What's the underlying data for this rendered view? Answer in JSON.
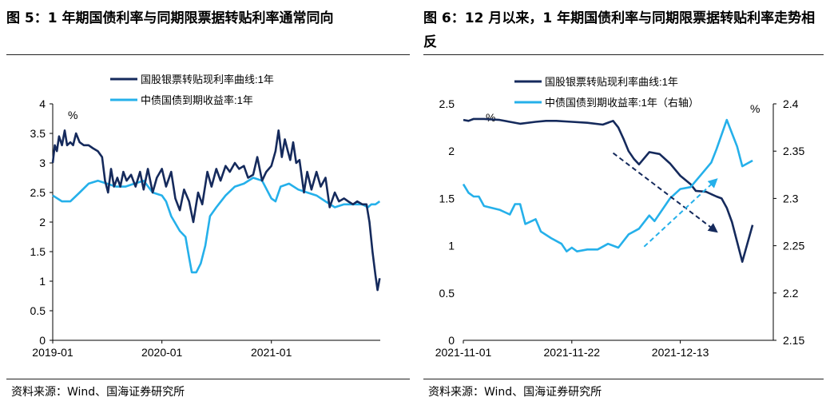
{
  "colors": {
    "navy": "#152a5c",
    "cyan": "#25b0ea"
  },
  "left": {
    "title": "图 5：1 年期国债利率与同期限票据转贴利率通常同向",
    "source": "资料来源：Wind、国海证券研究所",
    "chart_data": {
      "type": "line",
      "unit_label": "%",
      "x_tick_labels": [
        "2019-01",
        "2020-01",
        "2021-01"
      ],
      "x_tick_dates": [
        "2019-01-01",
        "2020-01-01",
        "2021-01-01"
      ],
      "x_range": [
        "2019-01-01",
        "2021-12-31"
      ],
      "y_ticks": [
        "0",
        "0.5",
        "1",
        "1.5",
        "2",
        "2.5",
        "3",
        "3.5",
        "4"
      ],
      "ylim": [
        0,
        4
      ],
      "legend_position": "top-center",
      "series": [
        {
          "name": "国股银票转贴现利率曲线:1年",
          "color": "#152a5c",
          "points": [
            [
              "2019-01-01",
              3.0
            ],
            [
              "2019-01-08",
              3.3
            ],
            [
              "2019-01-15",
              3.2
            ],
            [
              "2019-01-22",
              3.45
            ],
            [
              "2019-02-01",
              3.3
            ],
            [
              "2019-02-10",
              3.55
            ],
            [
              "2019-02-18",
              3.3
            ],
            [
              "2019-03-01",
              3.35
            ],
            [
              "2019-03-10",
              3.3
            ],
            [
              "2019-03-20",
              3.5
            ],
            [
              "2019-04-01",
              3.35
            ],
            [
              "2019-04-15",
              3.3
            ],
            [
              "2019-05-01",
              3.3
            ],
            [
              "2019-05-15",
              3.25
            ],
            [
              "2019-06-01",
              3.2
            ],
            [
              "2019-06-15",
              3.1
            ],
            [
              "2019-06-25",
              2.7
            ],
            [
              "2019-07-05",
              2.5
            ],
            [
              "2019-07-15",
              2.9
            ],
            [
              "2019-07-25",
              2.6
            ],
            [
              "2019-08-05",
              2.75
            ],
            [
              "2019-08-15",
              2.6
            ],
            [
              "2019-08-25",
              2.85
            ],
            [
              "2019-09-05",
              2.7
            ],
            [
              "2019-09-20",
              2.8
            ],
            [
              "2019-10-05",
              2.6
            ],
            [
              "2019-10-20",
              2.85
            ],
            [
              "2019-11-01",
              2.55
            ],
            [
              "2019-11-15",
              2.9
            ],
            [
              "2019-12-01",
              2.5
            ],
            [
              "2019-12-15",
              2.75
            ],
            [
              "2020-01-01",
              2.9
            ],
            [
              "2020-01-15",
              2.6
            ],
            [
              "2020-02-01",
              2.85
            ],
            [
              "2020-02-15",
              2.4
            ],
            [
              "2020-03-01",
              2.2
            ],
            [
              "2020-03-15",
              2.55
            ],
            [
              "2020-04-01",
              2.35
            ],
            [
              "2020-04-15",
              2.0
            ],
            [
              "2020-05-01",
              2.5
            ],
            [
              "2020-05-15",
              2.3
            ],
            [
              "2020-06-01",
              2.85
            ],
            [
              "2020-06-15",
              2.6
            ],
            [
              "2020-07-01",
              2.9
            ],
            [
              "2020-07-15",
              2.7
            ],
            [
              "2020-08-01",
              2.95
            ],
            [
              "2020-08-15",
              2.85
            ],
            [
              "2020-09-01",
              3.0
            ],
            [
              "2020-09-15",
              2.9
            ],
            [
              "2020-10-01",
              2.95
            ],
            [
              "2020-10-15",
              2.75
            ],
            [
              "2020-11-01",
              2.8
            ],
            [
              "2020-11-15",
              3.1
            ],
            [
              "2020-12-01",
              2.7
            ],
            [
              "2020-12-15",
              2.85
            ],
            [
              "2021-01-01",
              2.95
            ],
            [
              "2021-01-15",
              3.2
            ],
            [
              "2021-01-25",
              3.55
            ],
            [
              "2021-02-05",
              3.1
            ],
            [
              "2021-02-15",
              3.4
            ],
            [
              "2021-02-25",
              3.2
            ],
            [
              "2021-03-05",
              3.05
            ],
            [
              "2021-03-15",
              3.35
            ],
            [
              "2021-03-25",
              3.0
            ],
            [
              "2021-04-05",
              3.05
            ],
            [
              "2021-04-20",
              2.5
            ],
            [
              "2021-05-01",
              2.85
            ],
            [
              "2021-05-15",
              2.55
            ],
            [
              "2021-06-01",
              2.85
            ],
            [
              "2021-06-15",
              2.6
            ],
            [
              "2021-07-01",
              2.75
            ],
            [
              "2021-07-15",
              2.25
            ],
            [
              "2021-08-01",
              2.5
            ],
            [
              "2021-08-15",
              2.35
            ],
            [
              "2021-09-01",
              2.4
            ],
            [
              "2021-09-15",
              2.35
            ],
            [
              "2021-10-01",
              2.3
            ],
            [
              "2021-10-15",
              2.35
            ],
            [
              "2021-11-01",
              2.3
            ],
            [
              "2021-11-15",
              2.3
            ],
            [
              "2021-11-25",
              2.0
            ],
            [
              "2021-12-05",
              1.5
            ],
            [
              "2021-12-15",
              1.1
            ],
            [
              "2021-12-22",
              0.85
            ],
            [
              "2021-12-29",
              1.05
            ]
          ]
        },
        {
          "name": "中债国债到期收益率:1年",
          "color": "#25b0ea",
          "points": [
            [
              "2019-01-01",
              2.45
            ],
            [
              "2019-02-01",
              2.35
            ],
            [
              "2019-03-01",
              2.35
            ],
            [
              "2019-04-01",
              2.5
            ],
            [
              "2019-05-01",
              2.65
            ],
            [
              "2019-06-01",
              2.7
            ],
            [
              "2019-07-01",
              2.65
            ],
            [
              "2019-08-01",
              2.6
            ],
            [
              "2019-09-01",
              2.6
            ],
            [
              "2019-10-01",
              2.65
            ],
            [
              "2019-11-01",
              2.7
            ],
            [
              "2019-12-01",
              2.5
            ],
            [
              "2020-01-01",
              2.45
            ],
            [
              "2020-01-15",
              2.35
            ],
            [
              "2020-02-01",
              2.1
            ],
            [
              "2020-03-01",
              1.85
            ],
            [
              "2020-03-20",
              1.75
            ],
            [
              "2020-04-01",
              1.4
            ],
            [
              "2020-04-10",
              1.15
            ],
            [
              "2020-04-25",
              1.15
            ],
            [
              "2020-05-10",
              1.3
            ],
            [
              "2020-05-25",
              1.6
            ],
            [
              "2020-06-10",
              2.1
            ],
            [
              "2020-07-01",
              2.25
            ],
            [
              "2020-08-01",
              2.45
            ],
            [
              "2020-09-01",
              2.6
            ],
            [
              "2020-10-01",
              2.65
            ],
            [
              "2020-11-01",
              2.75
            ],
            [
              "2020-12-01",
              2.7
            ],
            [
              "2021-01-01",
              2.4
            ],
            [
              "2021-01-15",
              2.35
            ],
            [
              "2021-02-01",
              2.6
            ],
            [
              "2021-03-01",
              2.65
            ],
            [
              "2021-04-01",
              2.55
            ],
            [
              "2021-05-01",
              2.5
            ],
            [
              "2021-06-01",
              2.45
            ],
            [
              "2021-07-01",
              2.35
            ],
            [
              "2021-08-01",
              2.25
            ],
            [
              "2021-09-01",
              2.3
            ],
            [
              "2021-10-01",
              2.3
            ],
            [
              "2021-11-01",
              2.3
            ],
            [
              "2021-11-20",
              2.25
            ],
            [
              "2021-12-01",
              2.3
            ],
            [
              "2021-12-15",
              2.3
            ],
            [
              "2021-12-29",
              2.35
            ]
          ]
        }
      ]
    }
  },
  "right": {
    "title": "图 6：12 月以来，1 年期国债利率与同期限票据转贴利率走势相反",
    "source": "资料来源：Wind、国海证券研究所",
    "chart_data": {
      "type": "line",
      "unit_label_left": "%",
      "unit_label_right": "%",
      "x_tick_labels": [
        "2021-11-01",
        "2021-11-22",
        "2021-12-13"
      ],
      "x_tick_dates": [
        "2021-11-01",
        "2021-11-22",
        "2021-12-13"
      ],
      "x_range": [
        "2021-11-01",
        "2021-12-31"
      ],
      "y_left_ticks": [
        "0",
        "0.5",
        "1",
        "1.5",
        "2",
        "2.5"
      ],
      "y_left_lim": [
        0,
        2.5
      ],
      "y_right_ticks": [
        "2.15",
        "2.2",
        "2.25",
        "2.3",
        "2.35",
        "2.4"
      ],
      "y_right_lim": [
        2.15,
        2.4
      ],
      "legend_position": "top-center",
      "series": [
        {
          "name": "国股银票转贴现利率曲线:1年",
          "color": "#152a5c",
          "axis": "left",
          "points": [
            [
              "2021-11-01",
              2.33
            ],
            [
              "2021-11-02",
              2.32
            ],
            [
              "2021-11-03",
              2.34
            ],
            [
              "2021-11-05",
              2.34
            ],
            [
              "2021-11-08",
              2.33
            ],
            [
              "2021-11-10",
              2.31
            ],
            [
              "2021-11-12",
              2.29
            ],
            [
              "2021-11-15",
              2.31
            ],
            [
              "2021-11-17",
              2.32
            ],
            [
              "2021-11-19",
              2.32
            ],
            [
              "2021-11-22",
              2.31
            ],
            [
              "2021-11-25",
              2.3
            ],
            [
              "2021-11-28",
              2.28
            ],
            [
              "2021-11-30",
              2.32
            ],
            [
              "2021-12-01",
              2.25
            ],
            [
              "2021-12-02",
              2.13
            ],
            [
              "2021-12-03",
              2.0
            ],
            [
              "2021-12-04",
              1.92
            ],
            [
              "2021-12-05",
              1.86
            ],
            [
              "2021-12-07",
              1.99
            ],
            [
              "2021-12-09",
              1.97
            ],
            [
              "2021-12-11",
              1.87
            ],
            [
              "2021-12-13",
              1.74
            ],
            [
              "2021-12-15",
              1.65
            ],
            [
              "2021-12-16",
              1.58
            ],
            [
              "2021-12-18",
              1.57
            ],
            [
              "2021-12-20",
              1.52
            ],
            [
              "2021-12-21",
              1.5
            ],
            [
              "2021-12-22",
              1.4
            ],
            [
              "2021-12-23",
              1.25
            ],
            [
              "2021-12-25",
              0.83
            ],
            [
              "2021-12-27",
              1.22
            ]
          ]
        },
        {
          "name": "中债国债到期收益率:1年（右轴）",
          "color": "#25b0ea",
          "axis": "right",
          "points": [
            [
              "2021-11-01",
              2.315
            ],
            [
              "2021-11-02",
              2.306
            ],
            [
              "2021-11-03",
              2.302
            ],
            [
              "2021-11-04",
              2.302
            ],
            [
              "2021-11-05",
              2.292
            ],
            [
              "2021-11-08",
              2.288
            ],
            [
              "2021-11-10",
              2.283
            ],
            [
              "2021-11-11",
              2.294
            ],
            [
              "2021-11-12",
              2.294
            ],
            [
              "2021-11-13",
              2.273
            ],
            [
              "2021-11-15",
              2.278
            ],
            [
              "2021-11-16",
              2.265
            ],
            [
              "2021-11-18",
              2.258
            ],
            [
              "2021-11-20",
              2.252
            ],
            [
              "2021-11-21",
              2.244
            ],
            [
              "2021-11-22",
              2.248
            ],
            [
              "2021-11-23",
              2.244
            ],
            [
              "2021-11-25",
              2.246
            ],
            [
              "2021-11-27",
              2.246
            ],
            [
              "2021-11-29",
              2.252
            ],
            [
              "2021-12-01",
              2.248
            ],
            [
              "2021-12-03",
              2.262
            ],
            [
              "2021-12-05",
              2.268
            ],
            [
              "2021-12-07",
              2.282
            ],
            [
              "2021-12-08",
              2.276
            ],
            [
              "2021-12-11",
              2.3
            ],
            [
              "2021-12-13",
              2.31
            ],
            [
              "2021-12-15",
              2.312
            ],
            [
              "2021-12-17",
              2.325
            ],
            [
              "2021-12-19",
              2.338
            ],
            [
              "2021-12-20",
              2.352
            ],
            [
              "2021-12-22",
              2.383
            ],
            [
              "2021-12-24",
              2.355
            ],
            [
              "2021-12-25",
              2.334
            ],
            [
              "2021-12-27",
              2.34
            ]
          ]
        }
      ]
    }
  }
}
